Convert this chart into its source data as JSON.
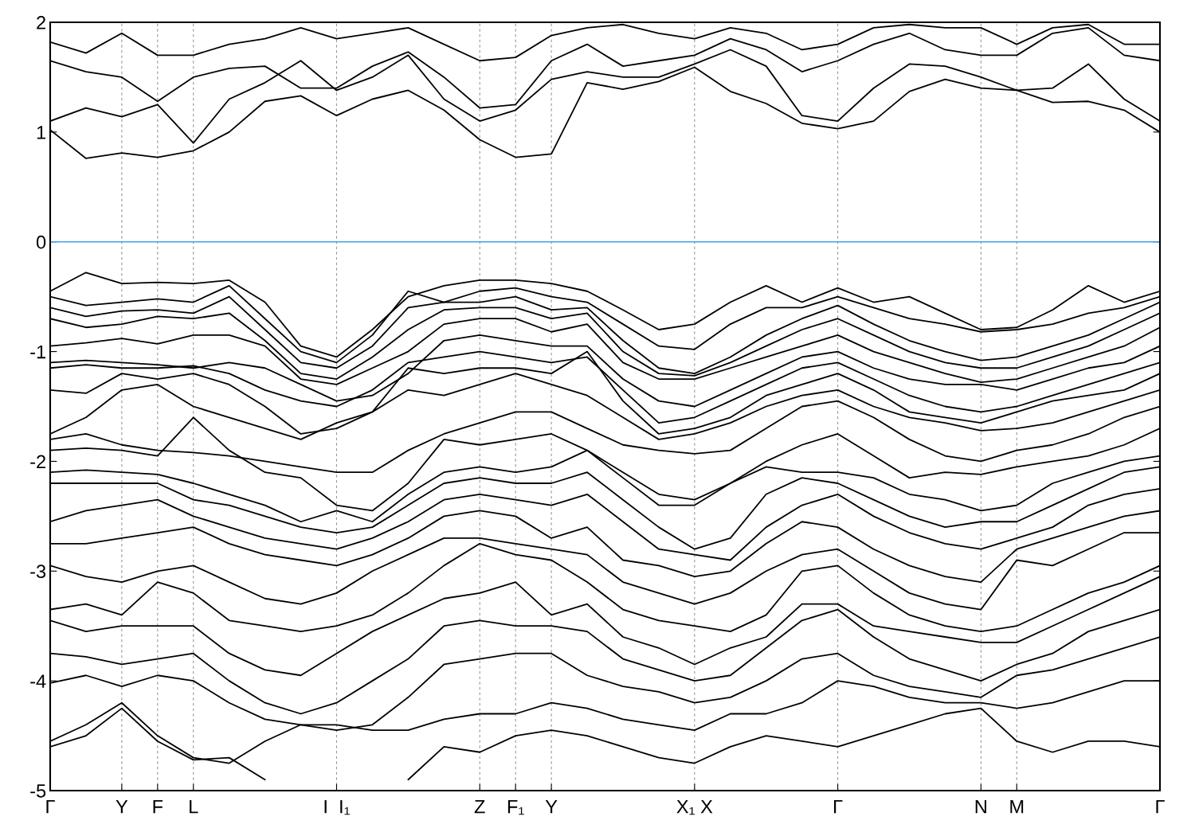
{
  "chart_data": {
    "type": "line",
    "categories": [
      "Γ",
      null,
      "Y",
      "F",
      "L",
      null,
      null,
      null,
      "I  I₁",
      null,
      null,
      null,
      "Z",
      "F₁",
      "Y",
      null,
      null,
      null,
      "X₁ X",
      null,
      null,
      null,
      "Γ",
      null,
      null,
      null,
      "N",
      "M",
      null,
      null,
      null,
      "Γ"
    ],
    "ylim": [
      -5,
      2
    ],
    "yticks": [
      -5,
      -4,
      -3,
      -2,
      -1,
      0,
      1,
      2
    ],
    "grid": "x",
    "ref_lines": [
      {
        "axis": "y",
        "value": 0,
        "color": "#3fa3e3"
      }
    ],
    "series": [
      {
        "color": "#000000",
        "values": [
          1.02,
          0.76,
          0.81,
          0.77,
          0.83,
          1.0,
          1.28,
          1.33,
          1.15,
          1.3,
          1.38,
          1.2,
          0.93,
          0.77,
          0.8,
          1.45,
          1.39,
          1.46,
          1.59,
          1.37,
          1.26,
          1.08,
          1.03,
          1.1,
          1.37,
          1.48,
          1.4,
          1.38,
          1.27,
          1.28,
          1.2,
          1.0
        ]
      },
      {
        "color": "#000000",
        "values": [
          1.1,
          1.22,
          1.14,
          1.25,
          0.9,
          1.3,
          1.45,
          1.65,
          1.38,
          1.5,
          1.7,
          1.3,
          1.1,
          1.2,
          1.48,
          1.55,
          1.5,
          1.5,
          1.62,
          1.75,
          1.6,
          1.15,
          1.1,
          1.4,
          1.62,
          1.6,
          1.5,
          1.38,
          1.4,
          1.62,
          1.3,
          1.1
        ]
      },
      {
        "color": "#000000",
        "values": [
          1.65,
          1.55,
          1.5,
          1.28,
          1.5,
          1.58,
          1.6,
          1.4,
          1.4,
          1.6,
          1.73,
          1.5,
          1.22,
          1.25,
          1.65,
          1.8,
          1.6,
          1.65,
          1.7,
          1.85,
          1.75,
          1.55,
          1.65,
          1.8,
          1.9,
          1.75,
          1.7,
          1.7,
          1.9,
          1.95,
          1.7,
          1.65
        ]
      },
      {
        "color": "#000000",
        "values": [
          1.82,
          1.72,
          1.9,
          1.7,
          1.7,
          1.8,
          1.85,
          1.95,
          1.85,
          1.9,
          1.95,
          1.8,
          1.65,
          1.68,
          1.88,
          1.95,
          1.98,
          1.9,
          1.85,
          1.95,
          1.9,
          1.75,
          1.8,
          1.95,
          1.98,
          1.95,
          1.95,
          1.8,
          1.95,
          1.98,
          1.8,
          1.8
        ]
      },
      {
        "color": "#000000",
        "values": [
          -0.45,
          -0.28,
          -0.38,
          -0.37,
          -0.38,
          -0.35,
          -0.55,
          -0.95,
          -1.05,
          -0.8,
          -0.5,
          -0.4,
          -0.35,
          -0.35,
          -0.38,
          -0.45,
          -0.62,
          -0.8,
          -0.75,
          -0.55,
          -0.4,
          -0.55,
          -0.42,
          -0.55,
          -0.5,
          -0.65,
          -0.8,
          -0.78,
          -0.62,
          -0.4,
          -0.55,
          -0.45
        ]
      },
      {
        "color": "#000000",
        "values": [
          -0.5,
          -0.58,
          -0.55,
          -0.52,
          -0.55,
          -0.4,
          -0.7,
          -1.0,
          -1.1,
          -0.85,
          -0.45,
          -0.55,
          -0.45,
          -0.42,
          -0.5,
          -0.55,
          -0.75,
          -0.95,
          -0.98,
          -0.75,
          -0.6,
          -0.6,
          -0.5,
          -0.6,
          -0.7,
          -0.75,
          -0.82,
          -0.8,
          -0.75,
          -0.65,
          -0.6,
          -0.5
        ]
      },
      {
        "color": "#000000",
        "values": [
          -0.6,
          -0.68,
          -0.63,
          -0.62,
          -0.65,
          -0.5,
          -0.8,
          -1.1,
          -1.15,
          -0.95,
          -0.6,
          -0.55,
          -0.55,
          -0.5,
          -0.62,
          -0.6,
          -0.9,
          -1.15,
          -1.2,
          -1.05,
          -0.85,
          -0.7,
          -0.58,
          -0.75,
          -0.9,
          -1.0,
          -1.08,
          -1.05,
          -0.95,
          -0.85,
          -0.7,
          -0.55
        ]
      },
      {
        "color": "#000000",
        "values": [
          -0.7,
          -0.78,
          -0.75,
          -0.68,
          -0.7,
          -0.65,
          -0.9,
          -1.2,
          -1.25,
          -1.05,
          -0.8,
          -0.62,
          -0.6,
          -0.6,
          -0.7,
          -0.65,
          -1.0,
          -1.2,
          -1.22,
          -1.1,
          -0.95,
          -0.8,
          -0.7,
          -0.85,
          -1.0,
          -1.1,
          -1.15,
          -1.15,
          -1.05,
          -0.95,
          -0.8,
          -0.65
        ]
      },
      {
        "color": "#000000",
        "values": [
          -0.95,
          -0.92,
          -0.88,
          -0.93,
          -0.85,
          -0.85,
          -0.95,
          -1.25,
          -1.3,
          -1.15,
          -1.0,
          -0.75,
          -0.7,
          -0.7,
          -0.82,
          -0.75,
          -1.1,
          -1.25,
          -1.25,
          -1.15,
          -1.05,
          -0.95,
          -0.85,
          -1.0,
          -1.1,
          -1.2,
          -1.28,
          -1.25,
          -1.15,
          -1.05,
          -0.95,
          -0.78
        ]
      },
      {
        "color": "#000000",
        "values": [
          -1.1,
          -1.08,
          -1.1,
          -1.12,
          -1.15,
          -1.1,
          -1.15,
          -1.3,
          -1.45,
          -1.4,
          -1.2,
          -0.9,
          -0.85,
          -0.9,
          -0.95,
          -0.95,
          -1.25,
          -1.45,
          -1.5,
          -1.35,
          -1.2,
          -1.05,
          -1.0,
          -1.15,
          -1.25,
          -1.3,
          -1.3,
          -1.35,
          -1.25,
          -1.15,
          -1.1,
          -0.95
        ]
      },
      {
        "color": "#000000",
        "values": [
          -1.15,
          -1.12,
          -1.15,
          -1.15,
          -1.13,
          -1.2,
          -1.35,
          -1.45,
          -1.5,
          -1.35,
          -1.1,
          -1.05,
          -1.0,
          -1.05,
          -1.1,
          -1.05,
          -1.35,
          -1.65,
          -1.6,
          -1.45,
          -1.3,
          -1.15,
          -1.1,
          -1.25,
          -1.4,
          -1.5,
          -1.55,
          -1.5,
          -1.4,
          -1.3,
          -1.2,
          -1.1
        ]
      },
      {
        "color": "#000000",
        "values": [
          -1.35,
          -1.38,
          -1.2,
          -1.25,
          -1.2,
          -1.3,
          -1.5,
          -1.75,
          -1.7,
          -1.55,
          -1.15,
          -1.2,
          -1.15,
          -1.15,
          -1.2,
          -1.0,
          -1.45,
          -1.75,
          -1.7,
          -1.6,
          -1.4,
          -1.3,
          -1.2,
          -1.35,
          -1.55,
          -1.6,
          -1.65,
          -1.55,
          -1.45,
          -1.4,
          -1.35,
          -1.2
        ]
      },
      {
        "color": "#000000",
        "values": [
          -1.75,
          -1.6,
          -1.35,
          -1.3,
          -1.5,
          -1.6,
          -1.7,
          -1.8,
          -1.65,
          -1.55,
          -1.35,
          -1.4,
          -1.3,
          -1.2,
          -1.3,
          -1.4,
          -1.6,
          -1.8,
          -1.75,
          -1.65,
          -1.5,
          -1.4,
          -1.35,
          -1.5,
          -1.6,
          -1.65,
          -1.72,
          -1.7,
          -1.65,
          -1.55,
          -1.45,
          -1.35
        ]
      },
      {
        "color": "#000000",
        "values": [
          -1.8,
          -1.75,
          -1.85,
          -1.9,
          -1.92,
          -1.95,
          -2.0,
          -2.05,
          -2.1,
          -2.1,
          -1.9,
          -1.75,
          -1.65,
          -1.55,
          -1.55,
          -1.7,
          -1.85,
          -1.9,
          -1.93,
          -1.9,
          -1.7,
          -1.5,
          -1.45,
          -1.6,
          -1.8,
          -1.95,
          -2.0,
          -1.9,
          -1.85,
          -1.75,
          -1.6,
          -1.5
        ]
      },
      {
        "color": "#000000",
        "values": [
          -1.9,
          -1.88,
          -1.9,
          -1.95,
          -1.6,
          -1.9,
          -2.1,
          -2.15,
          -2.4,
          -2.45,
          -2.2,
          -1.8,
          -1.85,
          -1.8,
          -1.75,
          -1.9,
          -2.1,
          -2.3,
          -2.35,
          -2.2,
          -2.0,
          -1.85,
          -1.75,
          -1.95,
          -2.15,
          -2.1,
          -2.12,
          -2.05,
          -2.0,
          -1.95,
          -1.85,
          -1.7
        ]
      },
      {
        "color": "#000000",
        "values": [
          -2.1,
          -2.08,
          -2.1,
          -2.12,
          -2.2,
          -2.3,
          -2.4,
          -2.55,
          -2.45,
          -2.55,
          -2.3,
          -2.1,
          -2.05,
          -2.1,
          -2.05,
          -1.9,
          -2.15,
          -2.4,
          -2.4,
          -2.2,
          -2.05,
          -2.1,
          -2.1,
          -2.15,
          -2.3,
          -2.35,
          -2.45,
          -2.4,
          -2.2,
          -2.1,
          -2.0,
          -1.95
        ]
      },
      {
        "color": "#000000",
        "values": [
          -2.2,
          -2.2,
          -2.2,
          -2.2,
          -2.35,
          -2.4,
          -2.5,
          -2.6,
          -2.65,
          -2.6,
          -2.4,
          -2.2,
          -2.15,
          -2.2,
          -2.2,
          -2.1,
          -2.35,
          -2.6,
          -2.8,
          -2.7,
          -2.3,
          -2.15,
          -2.2,
          -2.35,
          -2.5,
          -2.6,
          -2.55,
          -2.55,
          -2.4,
          -2.25,
          -2.1,
          -2.05
        ]
      },
      {
        "color": "#000000",
        "values": [
          -2.55,
          -2.45,
          -2.4,
          -2.35,
          -2.5,
          -2.6,
          -2.7,
          -2.75,
          -2.8,
          -2.7,
          -2.55,
          -2.35,
          -2.3,
          -2.35,
          -2.4,
          -2.3,
          -2.55,
          -2.8,
          -2.85,
          -2.9,
          -2.6,
          -2.4,
          -2.3,
          -2.5,
          -2.65,
          -2.75,
          -2.8,
          -2.7,
          -2.6,
          -2.4,
          -2.3,
          -2.25
        ]
      },
      {
        "color": "#000000",
        "values": [
          -2.75,
          -2.75,
          -2.7,
          -2.65,
          -2.6,
          -2.75,
          -2.85,
          -2.9,
          -2.95,
          -2.85,
          -2.7,
          -2.5,
          -2.45,
          -2.5,
          -2.7,
          -2.6,
          -2.9,
          -2.95,
          -3.05,
          -3.0,
          -2.75,
          -2.55,
          -2.6,
          -2.8,
          -2.95,
          -3.05,
          -3.1,
          -2.8,
          -2.7,
          -2.6,
          -2.5,
          -2.45
        ]
      },
      {
        "color": "#000000",
        "values": [
          -2.95,
          -3.05,
          -3.1,
          -3.0,
          -2.95,
          -3.1,
          -3.25,
          -3.3,
          -3.2,
          -3.0,
          -2.85,
          -2.7,
          -2.7,
          -2.75,
          -2.8,
          -2.85,
          -3.1,
          -3.2,
          -3.3,
          -3.2,
          -3.0,
          -2.85,
          -2.8,
          -3.0,
          -3.2,
          -3.3,
          -3.35,
          -2.9,
          -2.95,
          -2.8,
          -2.65,
          -2.65
        ]
      },
      {
        "color": "#000000",
        "values": [
          -3.35,
          -3.3,
          -3.4,
          -3.1,
          -3.2,
          -3.45,
          -3.5,
          -3.55,
          -3.5,
          -3.4,
          -3.2,
          -2.95,
          -2.75,
          -2.85,
          -2.9,
          -3.1,
          -3.35,
          -3.45,
          -3.5,
          -3.55,
          -3.4,
          -3.0,
          -2.95,
          -3.2,
          -3.4,
          -3.5,
          -3.55,
          -3.5,
          -3.35,
          -3.2,
          -3.1,
          -2.95
        ]
      },
      {
        "color": "#000000",
        "values": [
          -3.45,
          -3.55,
          -3.5,
          -3.5,
          -3.5,
          -3.75,
          -3.9,
          -3.95,
          -3.75,
          -3.55,
          -3.4,
          -3.25,
          -3.2,
          -3.1,
          -3.4,
          -3.3,
          -3.6,
          -3.7,
          -3.85,
          -3.7,
          -3.6,
          -3.3,
          -3.3,
          -3.5,
          -3.55,
          -3.6,
          -3.65,
          -3.65,
          -3.5,
          -3.35,
          -3.2,
          -3.05
        ]
      },
      {
        "color": "#000000",
        "values": [
          -3.75,
          -3.78,
          -3.85,
          -3.8,
          -3.75,
          -4.0,
          -4.2,
          -4.3,
          -4.2,
          -4.0,
          -3.8,
          -3.5,
          -3.45,
          -3.5,
          -3.5,
          -3.55,
          -3.8,
          -3.9,
          -4.0,
          -3.95,
          -3.7,
          -3.45,
          -3.35,
          -3.6,
          -3.8,
          -3.9,
          -4.0,
          -3.85,
          -3.75,
          -3.55,
          -3.45,
          -3.35
        ]
      },
      {
        "color": "#000000",
        "values": [
          -4.02,
          -3.95,
          -4.05,
          -3.95,
          -4.0,
          -4.2,
          -4.35,
          -4.4,
          -4.45,
          -4.4,
          -4.15,
          -3.85,
          -3.8,
          -3.75,
          -3.75,
          -3.95,
          -4.05,
          -4.1,
          -4.2,
          -4.15,
          -4.0,
          -3.8,
          -3.75,
          -3.95,
          -4.05,
          -4.1,
          -4.15,
          -3.95,
          -3.9,
          -3.8,
          -3.7,
          -3.6
        ]
      },
      {
        "color": "#000000",
        "values": [
          -4.55,
          -4.4,
          -4.2,
          -4.5,
          -4.7,
          -4.75,
          -4.55,
          -4.4,
          -4.4,
          -4.45,
          -4.45,
          -4.35,
          -4.3,
          -4.3,
          -4.2,
          -4.25,
          -4.35,
          -4.4,
          -4.45,
          -4.3,
          -4.3,
          -4.2,
          -4.0,
          -4.05,
          -4.15,
          -4.2,
          -4.2,
          -4.25,
          -4.2,
          -4.1,
          -4.0,
          -4.0
        ]
      },
      {
        "color": "#000000",
        "values": [
          -4.6,
          -4.5,
          -4.25,
          -4.55,
          -4.72,
          -4.7,
          -4.9,
          null,
          null,
          null,
          -4.9,
          -4.6,
          -4.65,
          -4.5,
          -4.45,
          -4.5,
          -4.6,
          -4.7,
          -4.75,
          -4.6,
          -4.5,
          -4.55,
          -4.6,
          -4.5,
          -4.4,
          -4.3,
          -4.25,
          -4.55,
          -4.65,
          -4.55,
          -4.55,
          -4.6
        ]
      }
    ]
  }
}
